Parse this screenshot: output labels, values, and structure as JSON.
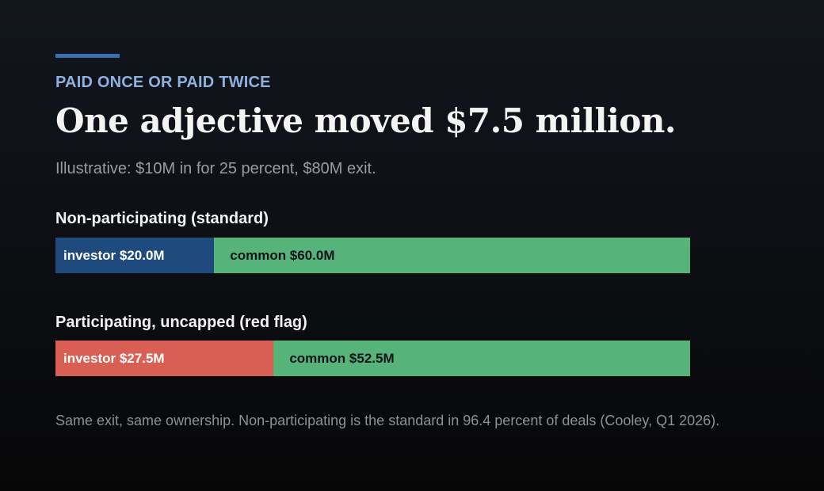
{
  "eyebrow": "PAID ONCE OR PAID TWICE",
  "headline": "One adjective moved $7.5 million.",
  "subtitle": "Illustrative: $10M in for 25 percent, $80M exit.",
  "footnote": "Same exit, same ownership. Non-participating is the standard in 96.4 percent of deals (Cooley, Q1 2026).",
  "colors": {
    "accent_rule": "#3a6fb0",
    "eyebrow": "#8fb1de",
    "investor_standard": "#1f4a7e",
    "investor_red_flag": "#d95f55",
    "common": "#56b37a"
  },
  "chart_data": {
    "type": "bar",
    "orientation": "horizontal-stacked",
    "unit": "$M",
    "total": 80,
    "groups": [
      {
        "label": "Non-participating (standard)",
        "segments": [
          {
            "name": "investor",
            "value": 20.0,
            "label": "investor $20.0M",
            "color": "#1f4a7e"
          },
          {
            "name": "common",
            "value": 60.0,
            "label": "common $60.0M",
            "color": "#56b37a"
          }
        ]
      },
      {
        "label": "Participating, uncapped (red flag)",
        "segments": [
          {
            "name": "investor",
            "value": 27.5,
            "label": "investor $27.5M",
            "color": "#d95f55"
          },
          {
            "name": "common",
            "value": 52.5,
            "label": "common $52.5M",
            "color": "#56b37a"
          }
        ]
      }
    ]
  }
}
